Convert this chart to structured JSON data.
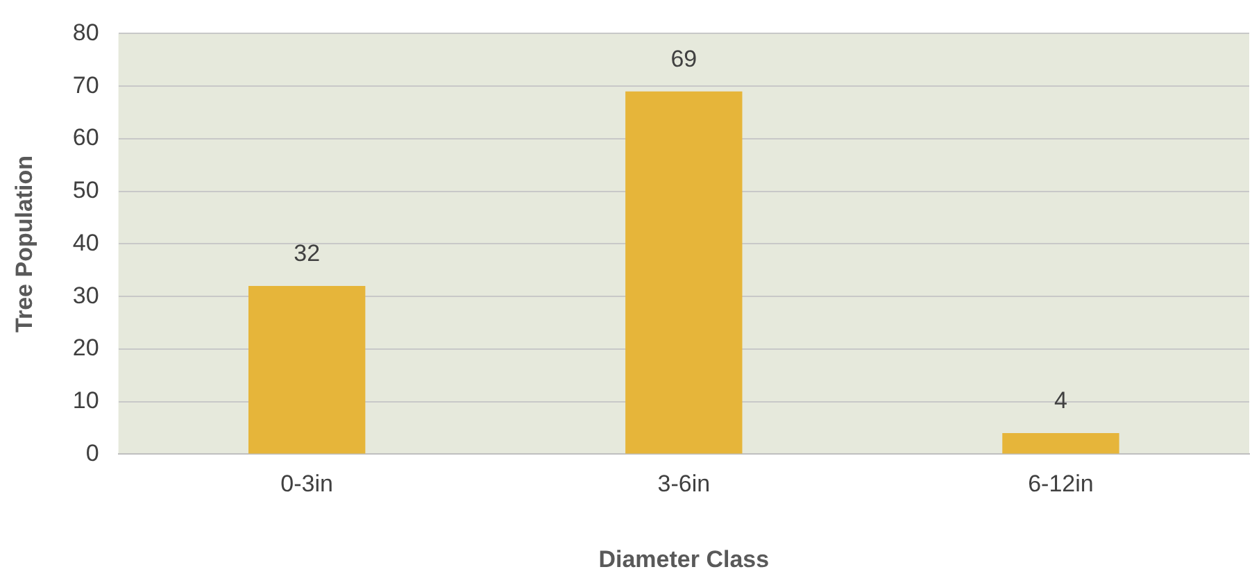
{
  "chart_data": {
    "type": "bar",
    "xlabel": "Diameter Class",
    "ylabel": "Tree Population",
    "categories": [
      "0-3in",
      "3-6in",
      "6-12in"
    ],
    "values": [
      32,
      69,
      4
    ],
    "color": "#e6b53a",
    "ylim": [
      0,
      80
    ],
    "yticks": [
      0,
      10,
      20,
      30,
      40,
      50,
      60,
      70,
      80
    ],
    "grid": "y",
    "data_labels": true
  }
}
